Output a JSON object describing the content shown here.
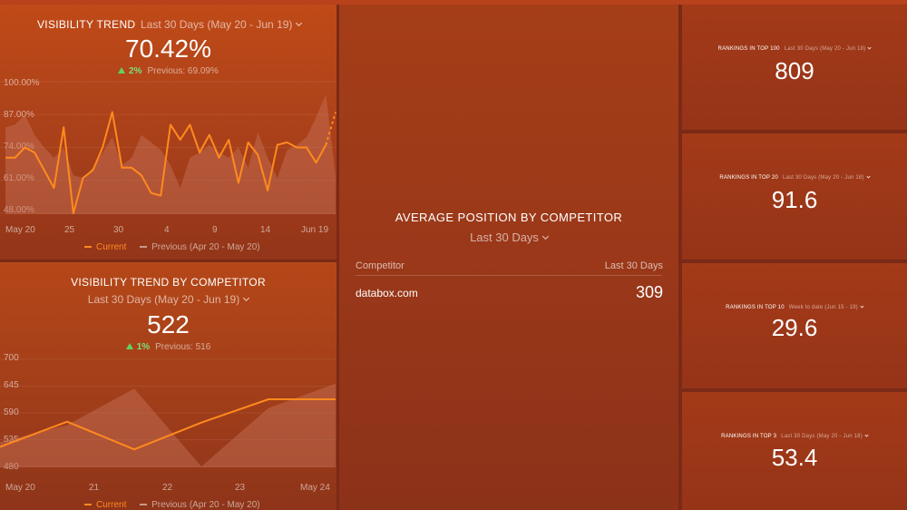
{
  "visibility_trend": {
    "title": "VISIBILITY TREND",
    "range": "Last 30 Days (May 20 - Jun 19)",
    "value": "70.42%",
    "delta": "2%",
    "previous": "Previous: 69.09%",
    "legend_current": "Current",
    "legend_previous": "Previous (Apr 20 - May 20)"
  },
  "competitor_trend": {
    "title": "VISIBILITY TREND BY COMPETITOR",
    "range": "Last 30 Days (May 20 - Jun 19)",
    "value": "522",
    "delta": "1%",
    "previous": "Previous: 516",
    "legend_current": "Current",
    "legend_previous": "Previous (Apr 20 - May 20)"
  },
  "average_position": {
    "title": "AVERAGE POSITION BY COMPETITOR",
    "range": "Last 30 Days",
    "col_competitor": "Competitor",
    "col_value": "Last 30 Days",
    "rows": [
      {
        "competitor": "databox.com",
        "value": "309"
      }
    ]
  },
  "kpis": [
    {
      "title": "RANKINGS IN TOP 100",
      "range": "Last 30 Days (May 20 - Jun 18)",
      "value": "809"
    },
    {
      "title": "RANKINGS IN TOP 20",
      "range": "Last 30 Days (May 20 - Jun 18)",
      "value": "91.6"
    },
    {
      "title": "RANKINGS IN TOP 10",
      "range": "Week to date (Jun 15 - 19)",
      "value": "29.6"
    },
    {
      "title": "RANKINGS IN TOP 3",
      "range": "Last 30 Days (May 20 - Jun 18)",
      "value": "53.4"
    }
  ],
  "colors": {
    "current_line": "#ff8a1e",
    "previous_area": "#c8735a"
  },
  "chart_data": [
    {
      "type": "line",
      "title": "VISIBILITY TREND",
      "x_ticks": [
        "May 20",
        "25",
        "30",
        "4",
        "9",
        "14",
        "Jun 19"
      ],
      "y_ticks": [
        "100.00%",
        "87.00%",
        "74.00%",
        "61.00%",
        "48.00%"
      ],
      "ylim": [
        48,
        100
      ],
      "series": [
        {
          "name": "Current",
          "values": [
            70,
            70,
            74,
            72,
            65,
            58,
            82,
            48,
            62,
            65,
            74,
            88,
            66,
            66,
            63,
            56,
            55,
            83,
            77,
            83,
            72,
            79,
            70,
            77,
            60,
            76,
            71,
            57,
            75,
            76,
            74,
            74,
            68,
            75,
            88
          ]
        },
        {
          "name": "Previous (Apr 20 - May 20)",
          "values": [
            82,
            83,
            87,
            79,
            74,
            70,
            74,
            63,
            62,
            66,
            72,
            78,
            67,
            70,
            79,
            76,
            73,
            67,
            58,
            70,
            72,
            75,
            72,
            70,
            74,
            66,
            80,
            70,
            62,
            73,
            75,
            78,
            86,
            95,
            63
          ]
        }
      ]
    },
    {
      "type": "line",
      "title": "VISIBILITY TREND BY COMPETITOR",
      "x_ticks": [
        "May 20",
        "21",
        "22",
        "23",
        "May 24"
      ],
      "y_ticks": [
        "700",
        "645",
        "590",
        "535",
        "480"
      ],
      "ylim": [
        480,
        700
      ],
      "series": [
        {
          "name": "Current",
          "values": [
            520,
            572,
            515,
            570,
            618,
            618
          ]
        },
        {
          "name": "Previous (Apr 20 - May 20)",
          "values": [
            530,
            565,
            640,
            480,
            600,
            650
          ]
        }
      ]
    }
  ]
}
